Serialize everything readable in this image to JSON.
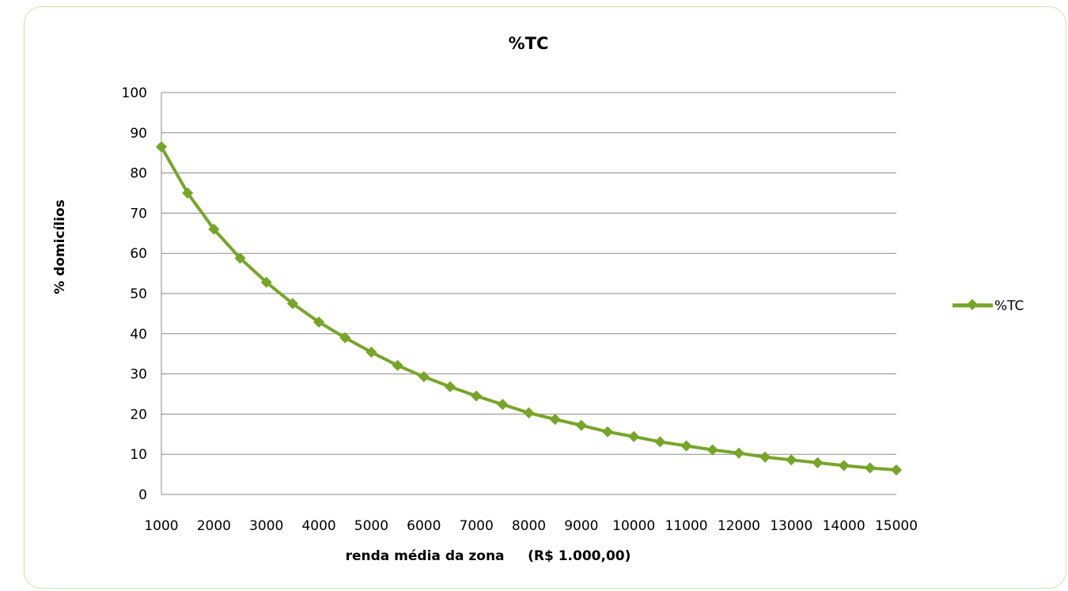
{
  "chart_data": {
    "type": "line",
    "title": "%TC",
    "xlabel": "renda média da zona     (R$ 1.000,00)",
    "ylabel": "% domicílios",
    "x_ticks": [
      "1000",
      "2000",
      "3000",
      "4000",
      "5000",
      "6000",
      "7000",
      "8000",
      "9000",
      "10000",
      "11000",
      "12000",
      "13000",
      "14000",
      "15000"
    ],
    "y_ticks": [
      "0",
      "10",
      "20",
      "30",
      "40",
      "50",
      "60",
      "70",
      "80",
      "90",
      "100"
    ],
    "xlim": [
      1000,
      15000
    ],
    "ylim": [
      0,
      100
    ],
    "grid": "horizontal",
    "legend": "right",
    "colors": {
      "series": "#77a52a",
      "grid": "#8a8a8a",
      "frame": "#c6e6a8"
    },
    "series": [
      {
        "name": "%TC",
        "x": [
          1000,
          1500,
          2000,
          2500,
          3000,
          3500,
          4000,
          4500,
          5000,
          5500,
          6000,
          6500,
          7000,
          7500,
          8000,
          8500,
          9000,
          9500,
          10000,
          10500,
          11000,
          11500,
          12000,
          12500,
          13000,
          13500,
          14000,
          14500,
          15000
        ],
        "y": [
          86.5,
          75.0,
          66.0,
          58.8,
          52.8,
          47.5,
          42.9,
          39.0,
          35.4,
          32.1,
          29.3,
          26.8,
          24.5,
          22.4,
          20.3,
          18.7,
          17.2,
          15.6,
          14.4,
          13.1,
          12.1,
          11.1,
          10.3,
          9.3,
          8.6,
          7.9,
          7.2,
          6.6,
          6.1
        ]
      }
    ]
  }
}
